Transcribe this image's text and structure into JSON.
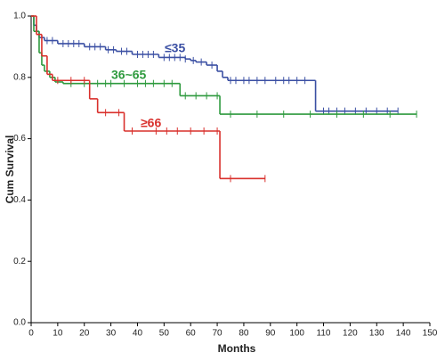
{
  "chart_data": {
    "type": "survival",
    "xlabel": "Months",
    "ylabel": "Cum Survival",
    "xlim": [
      0,
      150
    ],
    "ylim": [
      0,
      1
    ],
    "xticks": [
      0,
      10,
      20,
      30,
      40,
      50,
      60,
      70,
      80,
      90,
      100,
      110,
      120,
      130,
      140,
      150
    ],
    "yticks": [
      {
        "value": 0,
        "label": "0.0"
      },
      {
        "value": 0.2,
        "label": "0.2"
      },
      {
        "value": 0.4,
        "label": "0.4"
      },
      {
        "value": 0.6,
        "label": "0.6"
      },
      {
        "value": 0.8,
        "label": "0.8"
      },
      {
        "value": 1,
        "label": "1.0"
      }
    ],
    "series": [
      {
        "name": "≤35",
        "color": "#3a4fa3",
        "x": [
          0,
          1,
          2,
          3,
          5,
          10,
          20,
          28,
          32,
          38,
          48,
          58,
          60,
          62,
          66,
          70,
          72,
          74,
          107
        ],
        "values": [
          1,
          0.97,
          0.95,
          0.93,
          0.92,
          0.91,
          0.9,
          0.89,
          0.885,
          0.875,
          0.865,
          0.86,
          0.855,
          0.85,
          0.84,
          0.82,
          0.8,
          0.79,
          0.69
        ],
        "censored": [
          3,
          6,
          8,
          12,
          14,
          16,
          18,
          22,
          24,
          26,
          29,
          31,
          34,
          36,
          40,
          42,
          44,
          46,
          50,
          52,
          54,
          56,
          58,
          61,
          64,
          68,
          75,
          77,
          80,
          82,
          85,
          88,
          92,
          95,
          97,
          100,
          103,
          110,
          112,
          115,
          118,
          122,
          126,
          130,
          134,
          138
        ]
      },
      {
        "name": "36~65",
        "color": "#2e9a3e",
        "x": [
          0,
          1,
          3,
          4,
          5,
          7,
          9,
          12,
          56,
          71
        ],
        "values": [
          1,
          0.95,
          0.88,
          0.84,
          0.82,
          0.8,
          0.785,
          0.78,
          0.74,
          0.68
        ],
        "censored": [
          15,
          20,
          25,
          28,
          30,
          35,
          40,
          43,
          46,
          50,
          53,
          58,
          62,
          66,
          70,
          75,
          85,
          95,
          105,
          115,
          125,
          135,
          145
        ]
      },
      {
        "name": "≥66",
        "color": "#d9302c",
        "x": [
          0,
          2,
          4,
          6,
          8,
          22,
          25,
          35,
          71
        ],
        "values": [
          1,
          0.94,
          0.87,
          0.81,
          0.79,
          0.73,
          0.685,
          0.625,
          0.47
        ],
        "censored": [
          10,
          15,
          20,
          28,
          33,
          38,
          47,
          51,
          55,
          60,
          65,
          70,
          75,
          88
        ]
      }
    ]
  }
}
